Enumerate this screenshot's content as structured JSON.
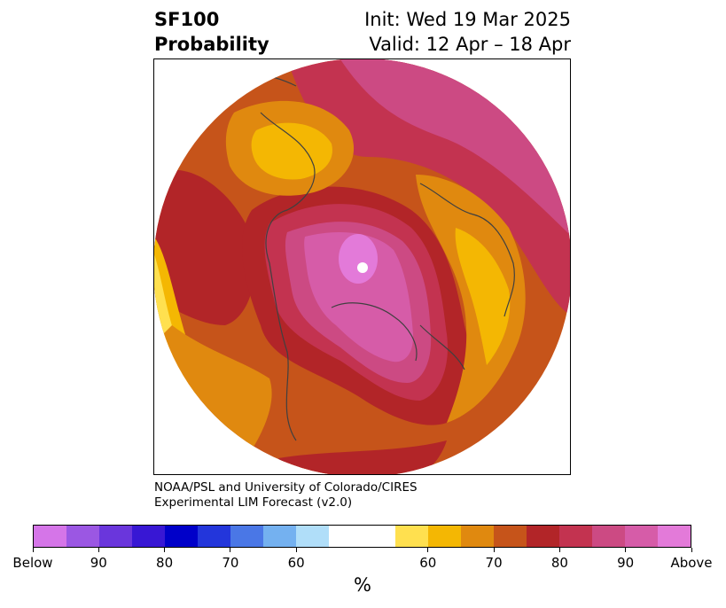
{
  "title": {
    "left_line1": "SF100",
    "left_line2": "Probability",
    "right_line1": "Init: Wed 19 Mar 2025",
    "right_line2": "Valid: 12 Apr – 18 Apr"
  },
  "credit": {
    "line1": "NOAA/PSL and University of Colorado/CIRES",
    "line2": "Experimental LIM Forecast (v2.0)"
  },
  "colorbar": {
    "unit": "%",
    "colors": [
      "#d575e8",
      "#9b57e3",
      "#6a36dc",
      "#3817d4",
      "#0000c9",
      "#2336db",
      "#4a77e6",
      "#74b1f0",
      "#b0def9",
      "#ffffff",
      "#ffe04f",
      "#f4b703",
      "#e0890f",
      "#c6541a",
      "#b22528",
      "#c33350",
      "#cc4a83",
      "#d65ca8",
      "#e37ad9"
    ],
    "labels": [
      "Below",
      "90",
      "80",
      "70",
      "60",
      "60",
      "70",
      "80",
      "90",
      "Above"
    ]
  },
  "map": {
    "projection": "north-polar-stereographic",
    "fill_colors": {
      "outer_yellow": "#ffe04f",
      "gold": "#f4b703",
      "orange": "#e0890f",
      "dark_orange": "#c6541a",
      "red": "#b22528",
      "crimson": "#c33350",
      "rose": "#cc4a83",
      "pink": "#d65ca8",
      "magenta": "#e37ad9"
    },
    "coastline_color": "#404040"
  }
}
